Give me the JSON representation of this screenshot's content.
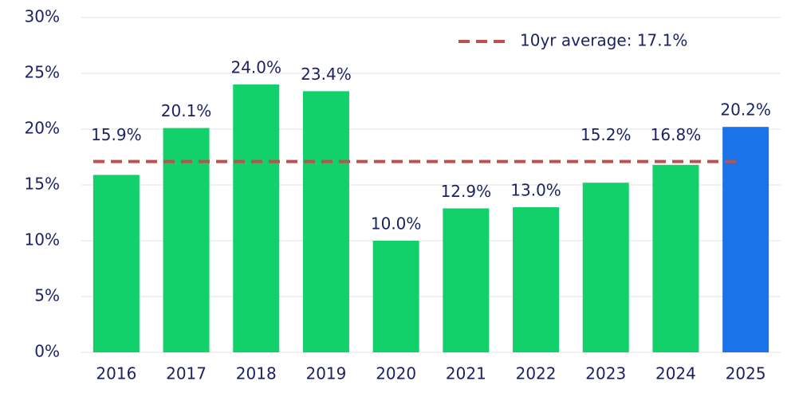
{
  "chart_data": {
    "type": "bar",
    "categories": [
      "2016",
      "2017",
      "2018",
      "2019",
      "2020",
      "2021",
      "2022",
      "2023",
      "2024",
      "2025"
    ],
    "values": [
      15.9,
      20.1,
      24.0,
      23.4,
      10.0,
      12.9,
      13.0,
      15.2,
      16.8,
      20.2
    ],
    "value_labels": [
      "15.9%",
      "20.1%",
      "24.0%",
      "23.4%",
      "10.0%",
      "12.9%",
      "13.0%",
      "15.2%",
      "16.8%",
      "20.2%"
    ],
    "colors": [
      "#12d16a",
      "#12d16a",
      "#12d16a",
      "#12d16a",
      "#12d16a",
      "#12d16a",
      "#12d16a",
      "#12d16a",
      "#12d16a",
      "#1a73e8"
    ],
    "ylim": [
      0,
      30
    ],
    "yticks": [
      {
        "value": 0,
        "label": "0%"
      },
      {
        "value": 5,
        "label": "5%"
      },
      {
        "value": 10,
        "label": "10%"
      },
      {
        "value": 15,
        "label": "15%"
      },
      {
        "value": 20,
        "label": "20%"
      },
      {
        "value": 25,
        "label": "25%"
      },
      {
        "value": 30,
        "label": "30%"
      }
    ],
    "grid": true,
    "reference_line": {
      "name": "10yr average: 17.1%",
      "value": 17.1,
      "color": "#c0504d"
    },
    "legend": "top-right"
  }
}
